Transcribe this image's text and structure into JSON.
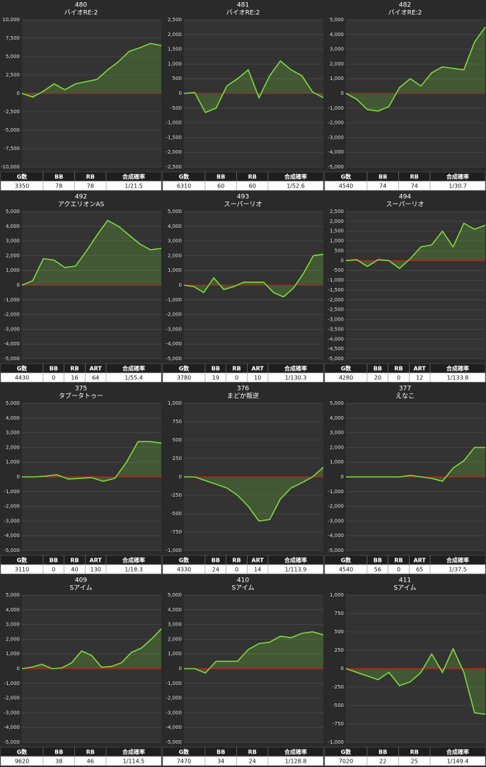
{
  "chart_data": [
    {
      "type": "line",
      "title": "480",
      "subtitle": "バイオRE:2",
      "color": "#7ddc3c",
      "values": [
        0,
        -500,
        300,
        1300,
        500,
        1300,
        1600,
        1900,
        3200,
        4300,
        5700,
        6200,
        6800,
        6500
      ],
      "ylim": [
        -10000,
        10000
      ],
      "yticks": [
        {
          "value": 10000,
          "label": "10,000"
        },
        {
          "value": 7500,
          "label": "7,500"
        },
        {
          "value": 5000,
          "label": "5,000"
        },
        {
          "value": 2500,
          "label": "2,500"
        },
        0,
        {
          "value": -2500,
          "label": "-2,500"
        },
        {
          "value": -5000,
          "label": "-5,000"
        },
        {
          "value": -7500,
          "label": "-7,500"
        },
        {
          "value": -10000,
          "label": "-10,000"
        }
      ],
      "table": {
        "headers": [
          "G数",
          "BB",
          "RB",
          "合成確率"
        ],
        "values": [
          3350,
          78,
          78,
          "1/21.5"
        ]
      }
    },
    {
      "type": "line",
      "title": "481",
      "subtitle": "バイオRE:2",
      "color": "#7ddc3c",
      "values": [
        0,
        30,
        -650,
        -500,
        250,
        500,
        800,
        -150,
        600,
        1100,
        800,
        600,
        50,
        -150
      ],
      "ylim": [
        -2500,
        2500
      ],
      "yticks": [
        {
          "value": 2500,
          "label": "2,500"
        },
        {
          "value": 2000,
          "label": "2,000"
        },
        {
          "value": 1500,
          "label": "1,500"
        },
        {
          "value": 1000,
          "label": "1,000"
        },
        500,
        0,
        -500,
        {
          "value": -1000,
          "label": "-1,000"
        },
        {
          "value": -1500,
          "label": "-1,500"
        },
        {
          "value": -2000,
          "label": "-2,000"
        },
        {
          "value": -2500,
          "label": "-2,500"
        }
      ],
      "table": {
        "headers": [
          "G数",
          "BB",
          "RB",
          "合成確率"
        ],
        "values": [
          6310,
          60,
          60,
          "1/52.6"
        ]
      }
    },
    {
      "type": "line",
      "title": "482",
      "subtitle": "バイオRE:2",
      "color": "#7ddc3c",
      "values": [
        0,
        -400,
        -1100,
        -1200,
        -900,
        400,
        1000,
        500,
        1400,
        1800,
        1700,
        1600,
        3500,
        4500
      ],
      "ylim": [
        -5000,
        5000
      ],
      "yticks": [
        {
          "value": 5000,
          "label": "5,000"
        },
        {
          "value": 4000,
          "label": "4,000"
        },
        {
          "value": 3000,
          "label": "3,000"
        },
        {
          "value": 2000,
          "label": "2,000"
        },
        {
          "value": 1000,
          "label": "1,000"
        },
        0,
        {
          "value": -1000,
          "label": "-1,000"
        },
        {
          "value": -2000,
          "label": "-2,000"
        },
        {
          "value": -3000,
          "label": "-3,000"
        },
        {
          "value": -4000,
          "label": "-4,000"
        },
        {
          "value": -5000,
          "label": "-5,000"
        }
      ],
      "table": {
        "headers": [
          "G数",
          "BB",
          "RB",
          "合成確率"
        ],
        "values": [
          4540,
          74,
          74,
          "1/30.7"
        ]
      }
    },
    {
      "type": "line",
      "title": "492",
      "subtitle": "アクエリオンAS",
      "color": "#7ddc3c",
      "values": [
        0,
        300,
        1800,
        1700,
        1200,
        1300,
        2300,
        3400,
        4400,
        4000,
        3400,
        2800,
        2400,
        2500
      ],
      "ylim": [
        -5000,
        5000
      ],
      "yticks": [
        {
          "value": 5000,
          "label": "5,000"
        },
        {
          "value": 4000,
          "label": "4,000"
        },
        {
          "value": 3000,
          "label": "3,000"
        },
        {
          "value": 2000,
          "label": "2,000"
        },
        {
          "value": 1000,
          "label": "1,000"
        },
        0,
        {
          "value": -1000,
          "label": "-1,000"
        },
        {
          "value": -2000,
          "label": "-2,000"
        },
        {
          "value": -3000,
          "label": "-3,000"
        },
        {
          "value": -4000,
          "label": "-4,000"
        },
        {
          "value": -5000,
          "label": "-5,000"
        }
      ],
      "table": {
        "headers": [
          "G数",
          "BB",
          "RB",
          "ART",
          "合成確率"
        ],
        "values": [
          4430,
          0,
          16,
          64,
          "1/55.4"
        ]
      }
    },
    {
      "type": "line",
      "title": "493",
      "subtitle": "スーパーリオ",
      "color": "#7ddc3c",
      "values": [
        0,
        -100,
        -500,
        500,
        -300,
        -100,
        200,
        200,
        200,
        -500,
        -800,
        -200,
        800,
        2000,
        2100
      ],
      "ylim": [
        -5000,
        5000
      ],
      "yticks": [
        {
          "value": 5000,
          "label": "5,000"
        },
        {
          "value": 4000,
          "label": "4,000"
        },
        {
          "value": 3000,
          "label": "3,000"
        },
        {
          "value": 2000,
          "label": "2,000"
        },
        {
          "value": 1000,
          "label": "1,000"
        },
        0,
        {
          "value": -1000,
          "label": "-1,000"
        },
        {
          "value": -2000,
          "label": "-2,000"
        },
        {
          "value": -3000,
          "label": "-3,000"
        },
        {
          "value": -4000,
          "label": "-4,000"
        },
        {
          "value": -5000,
          "label": "-5,000"
        }
      ],
      "table": {
        "headers": [
          "G数",
          "BB",
          "RB",
          "ART",
          "合成確率"
        ],
        "values": [
          3780,
          19,
          0,
          10,
          "1/130.3"
        ]
      }
    },
    {
      "type": "line",
      "title": "494",
      "subtitle": "スーパーリオ",
      "color": "#7ddc3c",
      "values": [
        0,
        50,
        -300,
        50,
        0,
        -400,
        100,
        700,
        800,
        1500,
        700,
        1900,
        1600,
        1800
      ],
      "ylim": [
        -5000,
        2500
      ],
      "yticks": [
        {
          "value": 2500,
          "label": "2,500"
        },
        {
          "value": 2000,
          "label": "2,000"
        },
        {
          "value": 1500,
          "label": "1,500"
        },
        {
          "value": 1000,
          "label": "1,000"
        },
        500,
        0,
        -500,
        {
          "value": -1000,
          "label": "-1,000"
        },
        {
          "value": -1500,
          "label": "-1,500"
        },
        {
          "value": -2000,
          "label": "-2,000"
        },
        {
          "value": -2500,
          "label": "-2,500"
        },
        {
          "value": -3000,
          "label": "-3,000"
        },
        {
          "value": -3500,
          "label": "-3,500"
        },
        {
          "value": -4000,
          "label": "-4,000"
        },
        {
          "value": -4500,
          "label": "-4,500"
        },
        {
          "value": -5000,
          "label": "-5,000"
        }
      ],
      "table": {
        "headers": [
          "G数",
          "BB",
          "RB",
          "ART",
          "合成確率"
        ],
        "values": [
          4280,
          20,
          0,
          12,
          "1/133.8"
        ]
      }
    },
    {
      "type": "line",
      "title": "375",
      "subtitle": "タブータトゥー",
      "color": "#7ddc3c",
      "values": [
        0,
        0,
        50,
        150,
        -150,
        -100,
        -50,
        -300,
        -100,
        1000,
        2400,
        2400,
        2300
      ],
      "ylim": [
        -5000,
        5000
      ],
      "yticks": [
        {
          "value": 5000,
          "label": "5,000"
        },
        {
          "value": 4000,
          "label": "4,000"
        },
        {
          "value": 3000,
          "label": "3,000"
        },
        {
          "value": 2000,
          "label": "2,000"
        },
        {
          "value": 1000,
          "label": "1,000"
        },
        0,
        {
          "value": -1000,
          "label": "-1,000"
        },
        {
          "value": -2000,
          "label": "-2,000"
        },
        {
          "value": -3000,
          "label": "-3,000"
        },
        {
          "value": -4000,
          "label": "-4,000"
        },
        {
          "value": -5000,
          "label": "-5,000"
        }
      ],
      "table": {
        "headers": [
          "G数",
          "BB",
          "RB",
          "ART",
          "合成確率"
        ],
        "values": [
          3110,
          0,
          40,
          130,
          "1/18.3"
        ]
      }
    },
    {
      "type": "line",
      "title": "376",
      "subtitle": "まどか叛逆",
      "color": "#7ddc3c",
      "values": [
        0,
        0,
        -50,
        -100,
        -150,
        -250,
        -400,
        -600,
        -580,
        -300,
        -150,
        -80,
        0,
        130
      ],
      "ylim": [
        -1000,
        1000
      ],
      "yticks": [
        {
          "value": 1000,
          "label": "1,000"
        },
        750,
        500,
        250,
        0,
        -250,
        -500,
        -750,
        {
          "value": -1000,
          "label": "-1,000"
        }
      ],
      "table": {
        "headers": [
          "G数",
          "BB",
          "RB",
          "ART",
          "合成確率"
        ],
        "values": [
          4330,
          24,
          0,
          14,
          "1/113.9"
        ]
      }
    },
    {
      "type": "line",
      "title": "377",
      "subtitle": "えなこ",
      "color": "#7ddc3c",
      "values": [
        0,
        0,
        0,
        0,
        0,
        0,
        100,
        0,
        -100,
        -300,
        600,
        1100,
        2000,
        2000
      ],
      "ylim": [
        -5000,
        5000
      ],
      "yticks": [
        {
          "value": 5000,
          "label": "5,000"
        },
        {
          "value": 4000,
          "label": "4,000"
        },
        {
          "value": 3000,
          "label": "3,000"
        },
        {
          "value": 2000,
          "label": "2,000"
        },
        {
          "value": 1000,
          "label": "1,000"
        },
        0,
        {
          "value": -1000,
          "label": "-1,000"
        },
        {
          "value": -2000,
          "label": "-2,000"
        },
        {
          "value": -3000,
          "label": "-3,000"
        },
        {
          "value": -4000,
          "label": "-4,000"
        },
        {
          "value": -5000,
          "label": "-5,000"
        }
      ],
      "table": {
        "headers": [
          "G数",
          "BB",
          "RB",
          "ART",
          "合成確率"
        ],
        "values": [
          4540,
          56,
          0,
          65,
          "1/37.5"
        ]
      }
    },
    {
      "type": "line",
      "title": "409",
      "subtitle": "Sアイム",
      "color": "#7ddc3c",
      "values": [
        0,
        100,
        300,
        0,
        50,
        400,
        1200,
        900,
        100,
        150,
        400,
        1100,
        1400,
        2000,
        2700
      ],
      "ylim": [
        -5000,
        5000
      ],
      "yticks": [
        {
          "value": 5000,
          "label": "5,000"
        },
        {
          "value": 4000,
          "label": "4,000"
        },
        {
          "value": 3000,
          "label": "3,000"
        },
        {
          "value": 2000,
          "label": "2,000"
        },
        {
          "value": 1000,
          "label": "1,000"
        },
        0,
        {
          "value": -1000,
          "label": "-1,000"
        },
        {
          "value": -2000,
          "label": "-2,000"
        },
        {
          "value": -3000,
          "label": "-3,000"
        },
        {
          "value": -4000,
          "label": "-4,000"
        },
        {
          "value": -5000,
          "label": "-5,000"
        }
      ],
      "table": {
        "headers": [
          "G数",
          "BB",
          "RB",
          "合成確率"
        ],
        "values": [
          9620,
          38,
          46,
          "1/114.5"
        ]
      }
    },
    {
      "type": "line",
      "title": "410",
      "subtitle": "Sアイム",
      "color": "#7ddc3c",
      "values": [
        0,
        0,
        -300,
        500,
        500,
        500,
        1300,
        1700,
        1800,
        2200,
        2100,
        2400,
        2500,
        2300
      ],
      "ylim": [
        -5000,
        5000
      ],
      "yticks": [
        {
          "value": 5000,
          "label": "5,000"
        },
        {
          "value": 4000,
          "label": "4,000"
        },
        {
          "value": 3000,
          "label": "3,000"
        },
        {
          "value": 2000,
          "label": "2,000"
        },
        {
          "value": 1000,
          "label": "1,000"
        },
        0,
        {
          "value": -1000,
          "label": "-1,000"
        },
        {
          "value": -2000,
          "label": "-2,000"
        },
        {
          "value": -3000,
          "label": "-3,000"
        },
        {
          "value": -4000,
          "label": "-4,000"
        },
        {
          "value": -5000,
          "label": "-5,000"
        }
      ],
      "table": {
        "headers": [
          "G数",
          "BB",
          "RB",
          "合成確率"
        ],
        "values": [
          7470,
          34,
          24,
          "1/128.8"
        ]
      }
    },
    {
      "type": "line",
      "title": "411",
      "subtitle": "Sアイム",
      "color": "#7ddc3c",
      "values": [
        0,
        -50,
        -100,
        -150,
        -50,
        -230,
        -180,
        -50,
        200,
        -50,
        270,
        -50,
        -600,
        -620
      ],
      "ylim": [
        -1000,
        1000
      ],
      "yticks": [
        {
          "value": 1000,
          "label": "1,000"
        },
        750,
        500,
        250,
        0,
        -250,
        -500,
        -750,
        {
          "value": -1000,
          "label": "-1,000"
        }
      ],
      "table": {
        "headers": [
          "G数",
          "BB",
          "RB",
          "合成確率"
        ],
        "values": [
          7020,
          22,
          25,
          "1/149.4"
        ]
      }
    }
  ]
}
